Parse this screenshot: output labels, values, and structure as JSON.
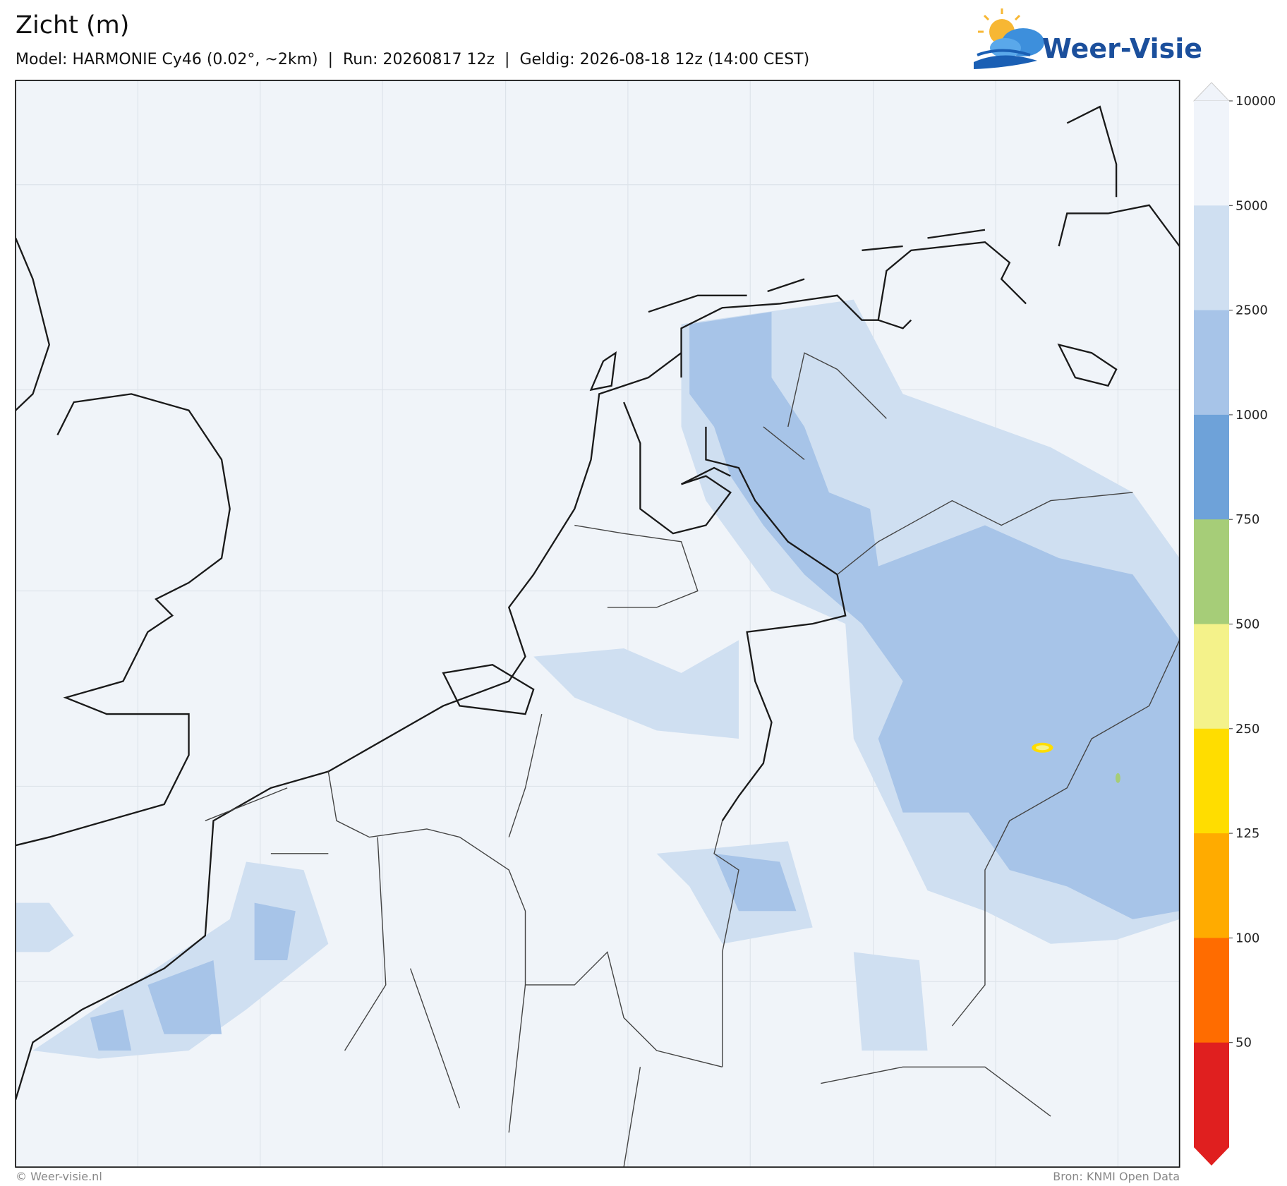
{
  "header": {
    "title": "Zicht (m)",
    "subtitle": "Model: HARMONIE Cy46 (0.02°, ~2km)  |  Run: 20260817 12z  |  Geldig: 2026-08-18 12z (14:00 CEST)"
  },
  "logo": {
    "text": "Weer-Visie"
  },
  "colorbar": {
    "ticks": [
      10000,
      5000,
      2500,
      1000,
      750,
      500,
      250,
      125,
      100,
      50
    ],
    "colors": [
      "#f0f4fa",
      "#cfdff1",
      "#a7c4e8",
      "#6ea2d9",
      "#a6cd78",
      "#f4f28a",
      "#ffdd00",
      "#ffab00",
      "#ff6c00",
      "#e01f1f"
    ]
  },
  "footer": {
    "left": "© Weer-visie.nl",
    "right": "Bron: KNMI Open Data"
  }
}
